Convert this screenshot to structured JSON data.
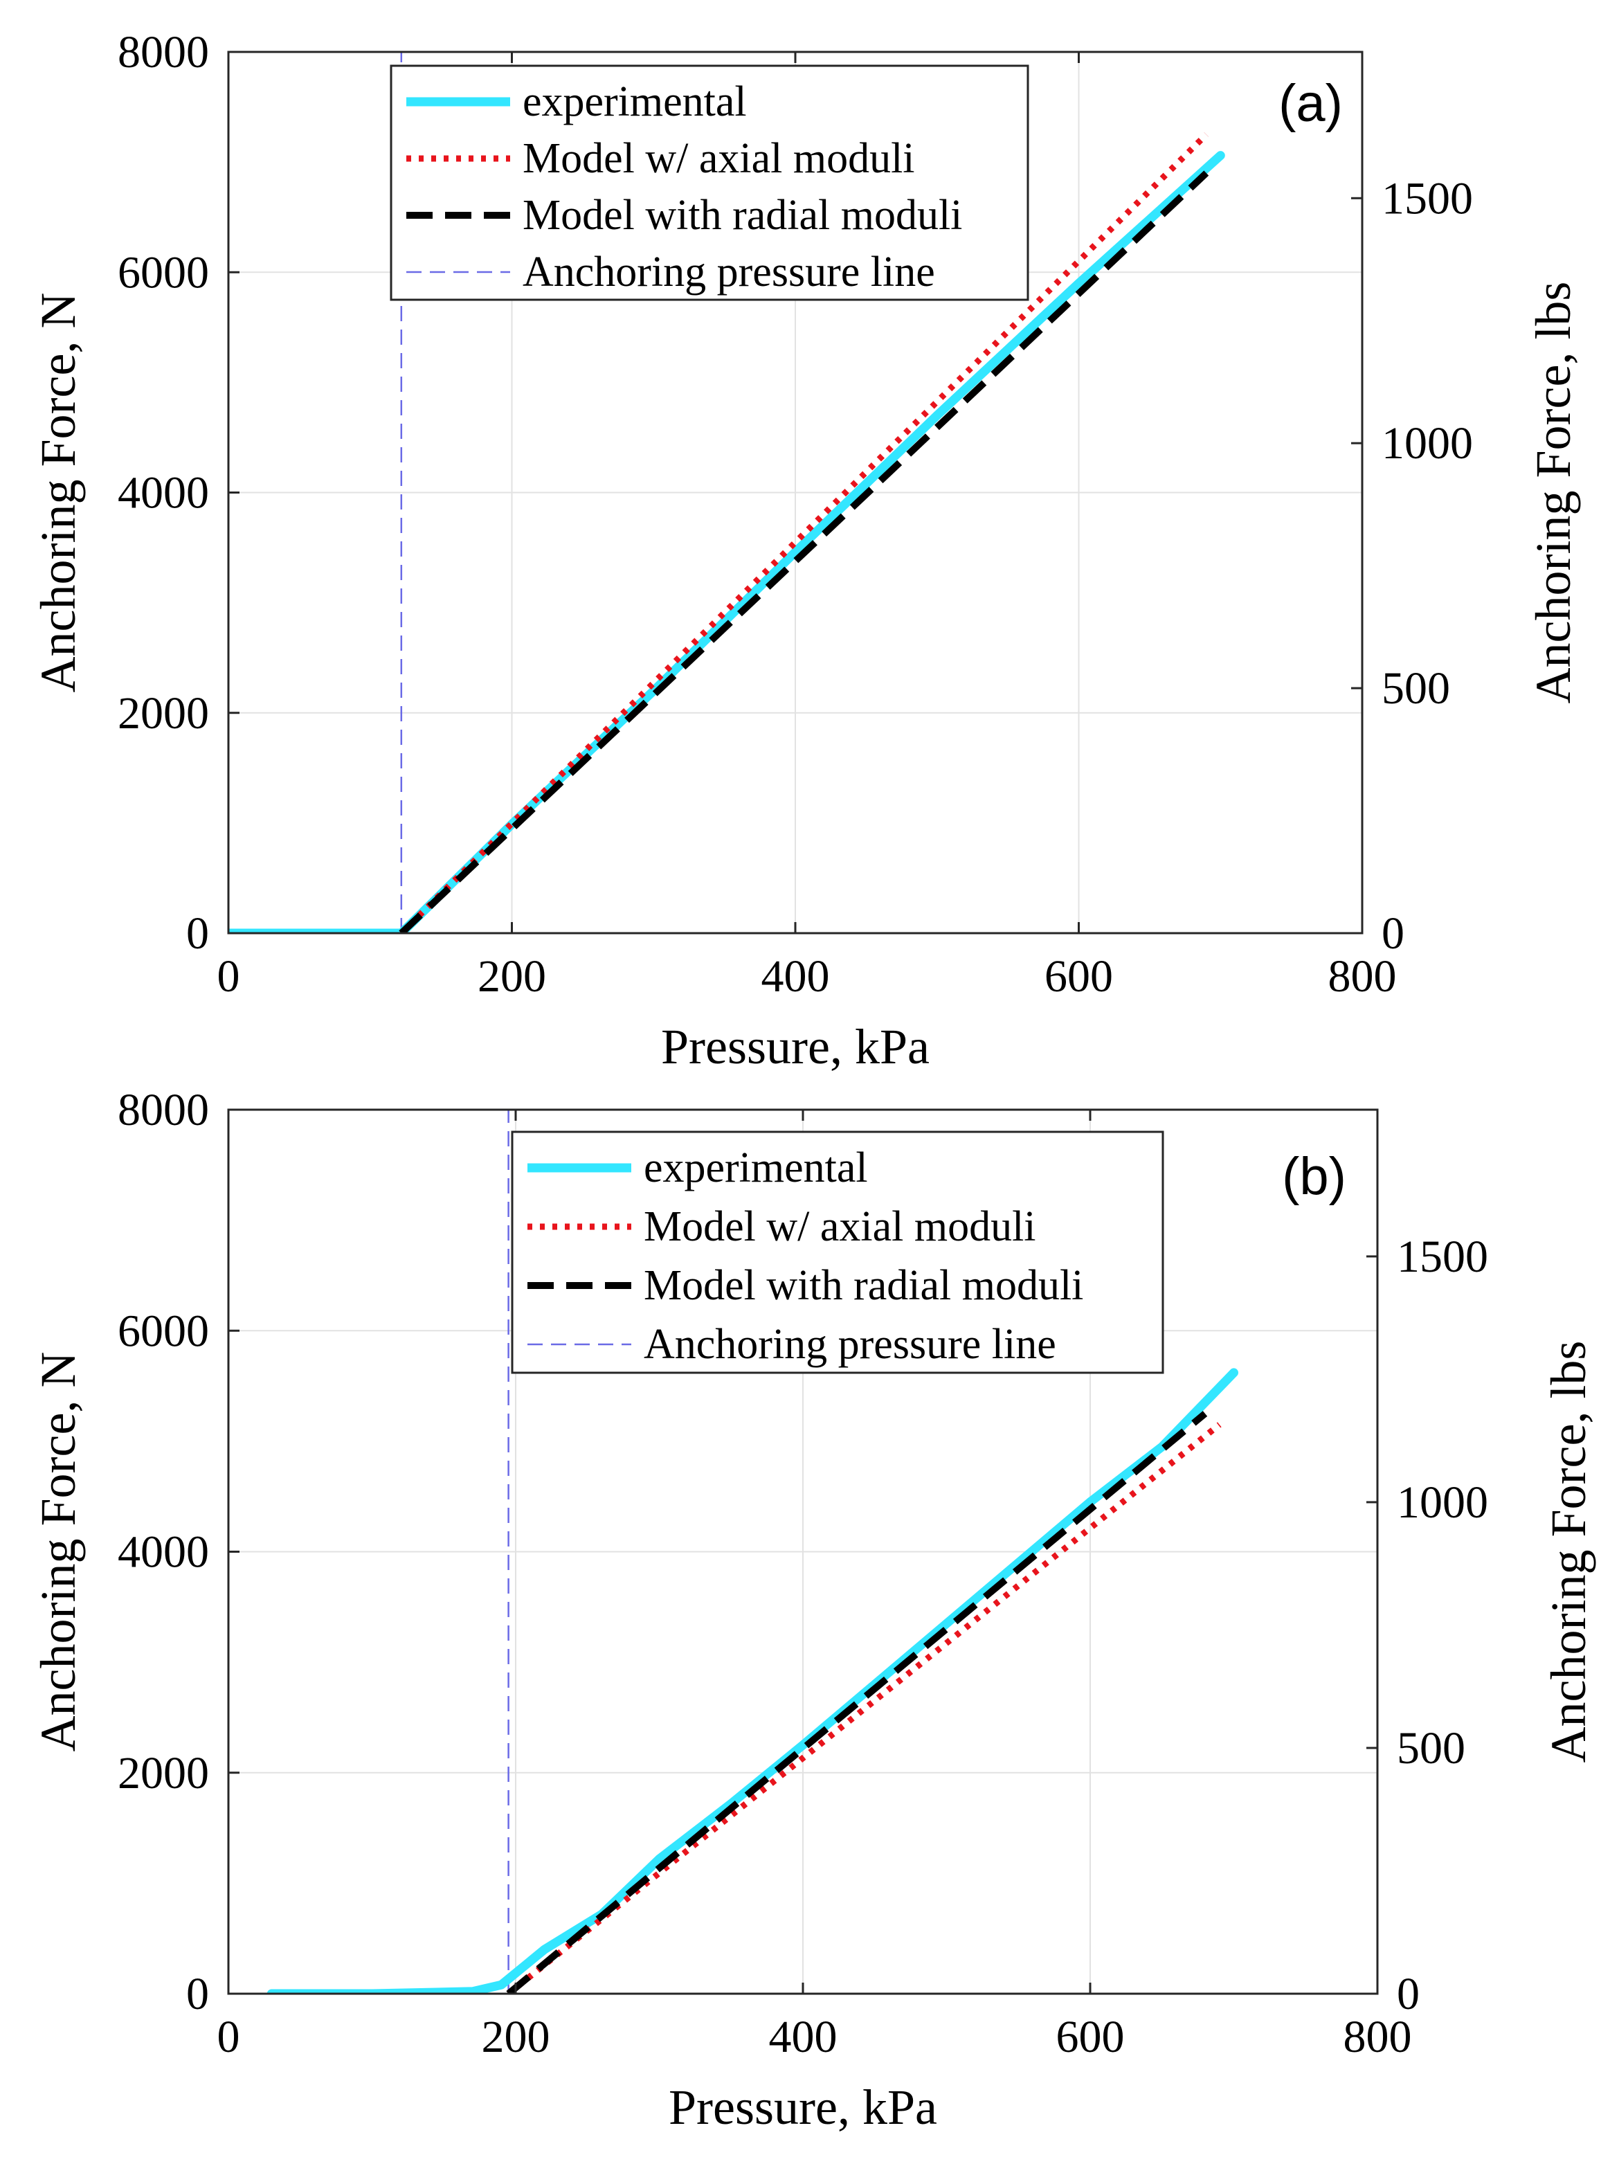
{
  "chart_data": [
    {
      "type": "line",
      "panel_label": "(a)",
      "xlabel": "Pressure, kPa",
      "ylabel": "Anchoring Force, N",
      "ylabel_right": "Anchoring Force, lbs",
      "xlim": [
        0,
        800
      ],
      "ylim": [
        0,
        8000
      ],
      "ylim_right": [
        0,
        1798.5
      ],
      "x_ticks": [
        "0",
        "200",
        "400",
        "600",
        "800"
      ],
      "y_ticks": [
        "0",
        "2000",
        "4000",
        "6000",
        "8000"
      ],
      "y_right_ticks": [
        "0",
        "500",
        "1000",
        "1500"
      ],
      "grid": true,
      "legend_position": "top-center",
      "anchoring_pressure": 122,
      "series": [
        {
          "name": "experimental",
          "color": "#33e6ff",
          "style": "solid",
          "x": [
            0,
            122,
            200,
            300,
            400,
            500,
            600,
            700
          ],
          "y": [
            0,
            0,
            990,
            2200,
            3460,
            4700,
            5900,
            7060
          ]
        },
        {
          "name": "Model w/ axial moduli",
          "color": "#e8141c",
          "style": "dotted",
          "x": [
            122,
            690
          ],
          "y": [
            0,
            7250
          ]
        },
        {
          "name": "Model with radial moduli",
          "color": "#000000",
          "style": "dashed",
          "x": [
            122,
            690
          ],
          "y": [
            0,
            6900
          ]
        },
        {
          "name": "Anchoring pressure line",
          "color": "#6a6ae6",
          "style": "thin-dashed",
          "x": [
            122,
            122
          ],
          "y": [
            0,
            8000
          ]
        }
      ]
    },
    {
      "type": "line",
      "panel_label": "(b)",
      "xlabel": "Pressure, kPa",
      "ylabel": "Anchoring Force, N",
      "ylabel_right": "Anchoring Force, lbs",
      "xlim": [
        0,
        800
      ],
      "ylim": [
        0,
        8000
      ],
      "ylim_right": [
        0,
        1798.5
      ],
      "x_ticks": [
        "0",
        "200",
        "400",
        "600",
        "800"
      ],
      "y_ticks": [
        "0",
        "2000",
        "4000",
        "6000",
        "8000"
      ],
      "y_right_ticks": [
        "0",
        "500",
        "1000",
        "1500"
      ],
      "grid": true,
      "legend_position": "top-right",
      "anchoring_pressure": 195,
      "series": [
        {
          "name": "experimental",
          "color": "#33e6ff",
          "style": "solid",
          "x": [
            30,
            100,
            170,
            190,
            220,
            260,
            300,
            350,
            400,
            450,
            500,
            550,
            600,
            650,
            700
          ],
          "y": [
            0,
            0,
            20,
            80,
            400,
            720,
            1220,
            1720,
            2250,
            2800,
            3350,
            3900,
            4450,
            4950,
            5620
          ]
        },
        {
          "name": "Model w/ axial moduli",
          "color": "#e8141c",
          "style": "dotted",
          "x": [
            195,
            690
          ],
          "y": [
            0,
            5150
          ]
        },
        {
          "name": "Model with radial moduli",
          "color": "#000000",
          "style": "dashed",
          "x": [
            195,
            680
          ],
          "y": [
            0,
            5250
          ]
        },
        {
          "name": "Anchoring pressure line",
          "color": "#6a6ae6",
          "style": "thin-dashed",
          "x": [
            195,
            195
          ],
          "y": [
            0,
            8000
          ]
        }
      ]
    }
  ]
}
